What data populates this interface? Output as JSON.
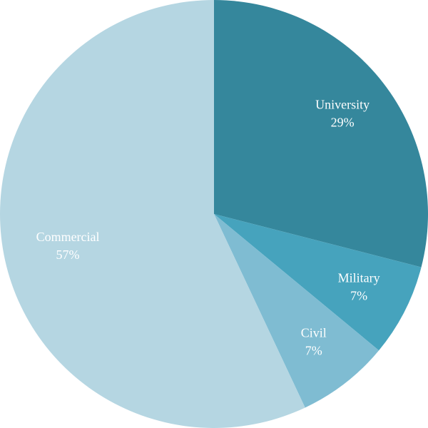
{
  "chart_data": {
    "type": "pie",
    "categories": [
      "University",
      "Military",
      "Civil",
      "Commercial"
    ],
    "values": [
      29,
      7,
      7,
      57
    ],
    "value_labels": [
      "29%",
      "7%",
      "7%",
      "57%"
    ],
    "colors": [
      "#35879c",
      "#46a3bd",
      "#7fbcd2",
      "#b5d6e2"
    ]
  }
}
